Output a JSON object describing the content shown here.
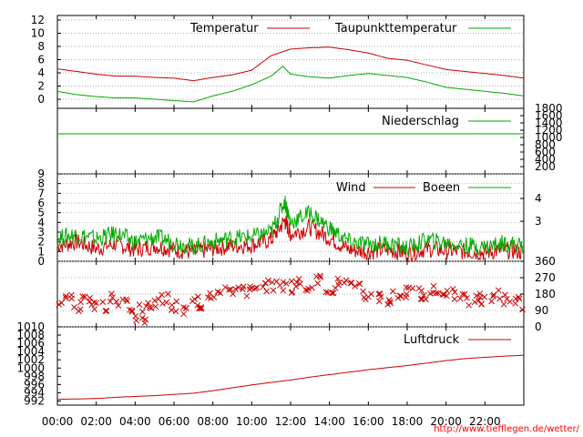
{
  "chart_data": [
    {
      "type": "line",
      "panel": "temperature",
      "ylim": [
        -1,
        12.5
      ],
      "y_ticks": [
        "0",
        "2",
        "4",
        "6",
        "8",
        "10",
        "12"
      ],
      "grid": true,
      "legend_placement": "top-right",
      "series": [
        {
          "name": "Temperatur",
          "color": "#cc0000",
          "x": [
            0,
            1,
            2,
            3,
            4,
            5,
            6,
            7,
            8,
            9,
            10,
            11,
            12,
            13,
            14,
            15,
            16,
            17,
            18,
            19,
            20,
            21,
            22,
            23,
            24
          ],
          "values": [
            4.6,
            4.2,
            3.8,
            3.5,
            3.5,
            3.3,
            3.2,
            2.8,
            3.3,
            3.7,
            4.4,
            6.6,
            7.6,
            7.8,
            7.9,
            7.5,
            7.0,
            6.2,
            5.9,
            5.2,
            4.5,
            4.2,
            3.9,
            3.6,
            3.2
          ]
        },
        {
          "name": "Taupunkttemperatur",
          "color": "#00aa00",
          "x": [
            0,
            1,
            2,
            3,
            4,
            5,
            6,
            7,
            8,
            9,
            10,
            11,
            11.6,
            12,
            13,
            14,
            15,
            16,
            17,
            18,
            19,
            20,
            21,
            22,
            23,
            24
          ],
          "values": [
            1.2,
            0.7,
            0.4,
            0.2,
            0.2,
            0.0,
            -0.2,
            -0.4,
            0.5,
            1.2,
            2.2,
            3.5,
            5.0,
            3.8,
            3.4,
            3.2,
            3.6,
            3.9,
            3.6,
            3.3,
            2.6,
            1.8,
            1.5,
            1.2,
            0.9,
            0.5
          ]
        }
      ]
    },
    {
      "type": "line",
      "panel": "precipitation",
      "ylim": [
        0,
        1800
      ],
      "y_ticks_right": [
        "200",
        "400",
        "600",
        "800",
        "1000",
        "1200",
        "1400",
        "1600",
        "1800"
      ],
      "grid": false,
      "legend_placement": "top-right",
      "series": [
        {
          "name": "Niederschlag",
          "color": "#00aa00",
          "x": [
            0,
            24
          ],
          "values": [
            1100,
            1100
          ]
        }
      ]
    },
    {
      "type": "line",
      "panel": "wind",
      "ylim": [
        0,
        9
      ],
      "y_ticks": [
        "0",
        "1",
        "2",
        "3",
        "4",
        "5",
        "6",
        "7",
        "8",
        "9"
      ],
      "y_ticks_right": [
        "3",
        "4"
      ],
      "grid": true,
      "legend_placement": "top-right",
      "series": [
        {
          "name": "Wind",
          "color": "#cc0000",
          "x": [
            0,
            1,
            2,
            3,
            4,
            5,
            6,
            7,
            8,
            9,
            10,
            11,
            11.7,
            12,
            13,
            14,
            15,
            16,
            17,
            18,
            19,
            20,
            21,
            22,
            23,
            24
          ],
          "values": [
            1.6,
            2.0,
            1.3,
            1.8,
            1.2,
            1.6,
            1.2,
            0.9,
            1.3,
            1.6,
            1.7,
            2.2,
            4.2,
            2.8,
            3.5,
            2.4,
            1.2,
            1.0,
            1.2,
            0.8,
            1.3,
            1.1,
            1.0,
            0.9,
            1.2,
            0.9
          ]
        },
        {
          "name": "Boeen",
          "color": "#00aa00",
          "x": [
            0,
            1,
            2,
            3,
            4,
            5,
            6,
            7,
            8,
            9,
            10,
            11,
            11.7,
            12,
            13,
            14,
            15,
            16,
            17,
            18,
            19,
            20,
            21,
            22,
            23,
            24
          ],
          "values": [
            2.4,
            2.8,
            2.3,
            2.9,
            2.0,
            2.5,
            2.0,
            1.5,
            2.0,
            2.4,
            2.5,
            3.0,
            6.2,
            4.0,
            5.0,
            3.4,
            2.0,
            1.7,
            1.9,
            1.3,
            2.2,
            1.9,
            1.6,
            1.5,
            1.9,
            1.6
          ]
        }
      ]
    },
    {
      "type": "scatter",
      "panel": "wind_direction",
      "ylim": [
        0,
        360
      ],
      "y_ticks_right": [
        "0",
        "90",
        "180",
        "270",
        "360"
      ],
      "grid": true,
      "marker": "x",
      "color": "#cc0000",
      "x": [
        0,
        0.5,
        1,
        1.5,
        2,
        2.5,
        3,
        3.5,
        4,
        4.3,
        4.6,
        5,
        5.5,
        6,
        6.5,
        7,
        7.5,
        8,
        8.5,
        9,
        9.5,
        10,
        10.5,
        11,
        11.5,
        12,
        12.5,
        13,
        13.5,
        14,
        14.5,
        15,
        15.5,
        16,
        16.5,
        17,
        17.5,
        18,
        18.5,
        19,
        19.5,
        20,
        20.5,
        21,
        21.5,
        22,
        22.5,
        23,
        23.5,
        24
      ],
      "values": [
        140,
        160,
        120,
        150,
        130,
        110,
        150,
        120,
        90,
        40,
        100,
        130,
        150,
        110,
        90,
        150,
        130,
        190,
        190,
        210,
        200,
        200,
        210,
        220,
        230,
        220,
        240,
        230,
        250,
        220,
        240,
        230,
        210,
        180,
        170,
        150,
        180,
        190,
        180,
        170,
        190,
        200,
        180,
        150,
        160,
        140,
        170,
        150,
        160,
        130
      ]
    },
    {
      "type": "line",
      "panel": "pressure",
      "ylim": [
        991,
        1010
      ],
      "y_ticks": [
        "992",
        "994",
        "996",
        "998",
        "1000",
        "1002",
        "1004",
        "1006",
        "1008",
        "1010"
      ],
      "grid": false,
      "legend_placement": "top-right",
      "series": [
        {
          "name": "Luftdruck",
          "color": "#cc0000",
          "x": [
            0,
            1,
            2,
            3,
            4,
            5,
            6,
            7,
            8,
            9,
            10,
            11,
            12,
            13,
            14,
            15,
            16,
            17,
            18,
            19,
            20,
            21,
            22,
            23,
            24
          ],
          "values": [
            992.4,
            992.5,
            992.6,
            992.9,
            993.1,
            993.3,
            993.6,
            993.9,
            994.5,
            995.2,
            995.9,
            996.5,
            997.1,
            997.8,
            998.4,
            999.0,
            999.6,
            1000.1,
            1000.6,
            1001.2,
            1001.8,
            1002.3,
            1002.6,
            1002.9,
            1003.1
          ]
        }
      ]
    }
  ],
  "x_axis": {
    "range_hours": [
      0,
      24
    ],
    "tick_labels": [
      "00:00",
      "02:00",
      "04:00",
      "06:00",
      "08:00",
      "10:00",
      "12:00",
      "14:00",
      "16:00",
      "18:00",
      "20:00",
      "22:00"
    ]
  },
  "legend": {
    "temperatur": "Temperatur",
    "taupunkt": "Taupunkttemperatur",
    "niederschlag": "Niederschlag",
    "wind": "Wind",
    "boeen": "Boeen",
    "luftdruck": "Luftdruck"
  },
  "footer": {
    "url": "http://www.tiefflegen.de/wetter/"
  },
  "colors": {
    "red": "#cc0000",
    "green": "#00aa00"
  }
}
